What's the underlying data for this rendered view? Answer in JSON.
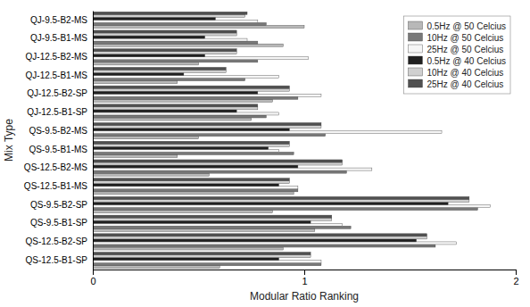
{
  "chart_data": {
    "type": "bar",
    "orientation": "horizontal",
    "categories": [
      "QJ-9.5-B2-MS",
      "QJ-9.5-B1-MS",
      "QJ-12.5-B2-MS",
      "QJ-12.5-B1-MS",
      "QJ-12.5-B2-SP",
      "QJ-12.5-B1-SP",
      "QS-9.5-B2-MS",
      "QS-9.5-B1-MS",
      "QS-12.5-B2-MS",
      "QS-12.5-B1-MS",
      "QS-9.5-B2-SP",
      "QS-9.5-B1-SP",
      "QS-12.5-B2-SP",
      "QS-12.5-B1-SP"
    ],
    "series": [
      {
        "name": "0.5Hz @ 50 Celcius",
        "color": "#b8b8b8",
        "values": [
          1.0,
          0.9,
          0.5,
          0.4,
          0.85,
          0.75,
          0.5,
          0.4,
          0.55,
          0.95,
          0.85,
          1.05,
          0.9,
          0.6
        ]
      },
      {
        "name": "10Hz @ 50 Celcius",
        "color": "#787878",
        "values": [
          0.82,
          0.78,
          0.78,
          0.72,
          0.97,
          0.82,
          1.1,
          0.95,
          1.2,
          0.97,
          1.82,
          1.22,
          1.62,
          1.08
        ]
      },
      {
        "name": "25Hz @ 50 Celcius",
        "color": "#f5f5f5",
        "values": [
          0.78,
          0.73,
          1.02,
          0.88,
          1.08,
          0.88,
          1.65,
          0.88,
          1.32,
          0.97,
          1.88,
          1.18,
          1.72,
          1.08
        ]
      },
      {
        "name": "0.5Hz @ 40 Celcius",
        "color": "#202020",
        "values": [
          0.58,
          0.53,
          0.53,
          0.43,
          0.78,
          0.68,
          0.93,
          0.83,
          0.97,
          0.88,
          1.68,
          1.03,
          1.53,
          0.88
        ]
      },
      {
        "name": "10Hz @ 40 Celcius",
        "color": "#d0d0d0",
        "values": [
          0.72,
          0.68,
          0.68,
          0.63,
          0.93,
          0.78,
          1.08,
          0.93,
          1.18,
          0.93,
          1.78,
          1.13,
          1.58,
          1.03
        ]
      },
      {
        "name": "25Hz @ 40 Celcius",
        "color": "#505050",
        "values": [
          0.73,
          0.68,
          0.68,
          0.63,
          0.93,
          0.78,
          1.08,
          0.93,
          1.18,
          0.93,
          1.78,
          1.13,
          1.58,
          1.03
        ]
      }
    ],
    "xlabel": "Modular Ratio Ranking",
    "ylabel": "Mix Type",
    "xlim": [
      0,
      2
    ],
    "xticks": [
      0,
      1,
      2
    ],
    "grid": false,
    "legend": "upper right"
  }
}
